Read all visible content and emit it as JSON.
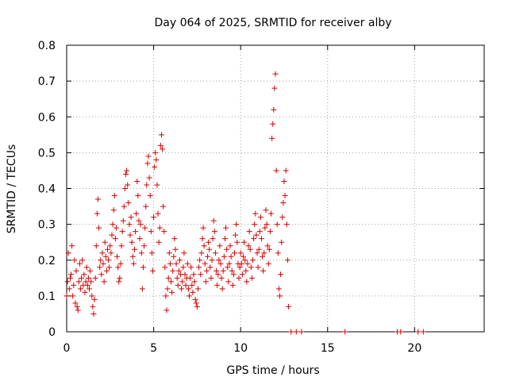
{
  "chart_data": {
    "type": "scatter",
    "title": "Day 064 of 2025, SRMTID for receiver alby",
    "xlabel": "GPS time / hours",
    "ylabel": "SRMTID / TECUs",
    "xlim": [
      0,
      24
    ],
    "ylim": [
      0,
      0.8
    ],
    "x_ticks": [
      0,
      5,
      10,
      15,
      20
    ],
    "y_ticks": [
      0,
      0.1,
      0.2,
      0.3,
      0.4,
      0.5,
      0.6,
      0.7,
      0.8
    ],
    "x_tick_labels": [
      "0",
      "5",
      "10",
      "15",
      "20"
    ],
    "y_tick_labels": [
      "0",
      "0.1",
      "0.2",
      "0.3",
      "0.4",
      "0.5",
      "0.6",
      "0.7",
      "0.8"
    ],
    "grid": true,
    "marker": "+",
    "color": "#d90000",
    "series": [
      {
        "name": "alby",
        "points": [
          [
            0.0,
            0.1
          ],
          [
            0.05,
            0.14
          ],
          [
            0.1,
            0.22
          ],
          [
            0.15,
            0.12
          ],
          [
            0.2,
            0.15
          ],
          [
            0.25,
            0.16
          ],
          [
            0.3,
            0.24
          ],
          [
            0.35,
            0.1
          ],
          [
            0.4,
            0.13
          ],
          [
            0.45,
            0.2
          ],
          [
            0.5,
            0.08
          ],
          [
            0.55,
            0.17
          ],
          [
            0.6,
            0.07
          ],
          [
            0.65,
            0.06
          ],
          [
            0.7,
            0.14
          ],
          [
            0.75,
            0.19
          ],
          [
            0.8,
            0.12
          ],
          [
            0.85,
            0.15
          ],
          [
            0.9,
            0.2
          ],
          [
            0.95,
            0.13
          ],
          [
            1.0,
            0.16
          ],
          [
            1.05,
            0.11
          ],
          [
            1.1,
            0.14
          ],
          [
            1.15,
            0.18
          ],
          [
            1.2,
            0.13
          ],
          [
            1.25,
            0.15
          ],
          [
            1.3,
            0.12
          ],
          [
            1.35,
            0.17
          ],
          [
            1.4,
            0.14
          ],
          [
            1.45,
            0.1
          ],
          [
            1.5,
            0.07
          ],
          [
            1.55,
            0.05
          ],
          [
            1.6,
            0.09
          ],
          [
            1.65,
            0.15
          ],
          [
            1.7,
            0.24
          ],
          [
            1.75,
            0.33
          ],
          [
            1.8,
            0.37
          ],
          [
            1.85,
            0.29
          ],
          [
            1.9,
            0.18
          ],
          [
            1.95,
            0.2
          ],
          [
            2.0,
            0.16
          ],
          [
            2.05,
            0.22
          ],
          [
            2.1,
            0.19
          ],
          [
            2.15,
            0.14
          ],
          [
            2.2,
            0.25
          ],
          [
            2.25,
            0.21
          ],
          [
            2.3,
            0.17
          ],
          [
            2.35,
            0.23
          ],
          [
            2.4,
            0.2
          ],
          [
            2.45,
            0.18
          ],
          [
            2.5,
            0.24
          ],
          [
            2.55,
            0.22
          ],
          [
            2.6,
            0.27
          ],
          [
            2.65,
            0.3
          ],
          [
            2.7,
            0.34
          ],
          [
            2.75,
            0.38
          ],
          [
            2.8,
            0.26
          ],
          [
            2.85,
            0.29
          ],
          [
            2.9,
            0.21
          ],
          [
            2.95,
            0.18
          ],
          [
            3.0,
            0.14
          ],
          [
            3.05,
            0.15
          ],
          [
            3.1,
            0.19
          ],
          [
            3.15,
            0.24
          ],
          [
            3.2,
            0.28
          ],
          [
            3.25,
            0.31
          ],
          [
            3.3,
            0.35
          ],
          [
            3.35,
            0.4
          ],
          [
            3.4,
            0.44
          ],
          [
            3.45,
            0.45
          ],
          [
            3.5,
            0.41
          ],
          [
            3.55,
            0.36
          ],
          [
            3.6,
            0.3
          ],
          [
            3.65,
            0.27
          ],
          [
            3.7,
            0.32
          ],
          [
            3.75,
            0.25
          ],
          [
            3.8,
            0.21
          ],
          [
            3.85,
            0.19
          ],
          [
            3.9,
            0.23
          ],
          [
            3.95,
            0.28
          ],
          [
            4.0,
            0.33
          ],
          [
            4.05,
            0.42
          ],
          [
            4.1,
            0.38
          ],
          [
            4.15,
            0.31
          ],
          [
            4.2,
            0.26
          ],
          [
            4.25,
            0.3
          ],
          [
            4.3,
            0.22
          ],
          [
            4.35,
            0.12
          ],
          [
            4.4,
            0.18
          ],
          [
            4.45,
            0.24
          ],
          [
            4.5,
            0.29
          ],
          [
            4.55,
            0.35
          ],
          [
            4.6,
            0.41
          ],
          [
            4.65,
            0.47
          ],
          [
            4.7,
            0.49
          ],
          [
            4.75,
            0.43
          ],
          [
            4.8,
            0.38
          ],
          [
            4.85,
            0.28
          ],
          [
            4.9,
            0.22
          ],
          [
            4.95,
            0.17
          ],
          [
            5.0,
            0.32
          ],
          [
            5.05,
            0.46
          ],
          [
            5.1,
            0.5
          ],
          [
            5.15,
            0.48
          ],
          [
            5.2,
            0.41
          ],
          [
            5.25,
            0.33
          ],
          [
            5.3,
            0.25
          ],
          [
            5.35,
            0.29
          ],
          [
            5.4,
            0.52
          ],
          [
            5.45,
            0.55
          ],
          [
            5.5,
            0.51
          ],
          [
            5.55,
            0.35
          ],
          [
            5.6,
            0.28
          ],
          [
            5.65,
            0.18
          ],
          [
            5.7,
            0.1
          ],
          [
            5.75,
            0.06
          ],
          [
            5.8,
            0.12
          ],
          [
            5.85,
            0.15
          ],
          [
            5.9,
            0.22
          ],
          [
            5.95,
            0.19
          ],
          [
            6.0,
            0.14
          ],
          [
            6.05,
            0.11
          ],
          [
            6.1,
            0.17
          ],
          [
            6.15,
            0.21
          ],
          [
            6.2,
            0.26
          ],
          [
            6.25,
            0.23
          ],
          [
            6.3,
            0.19
          ],
          [
            6.35,
            0.15
          ],
          [
            6.4,
            0.13
          ],
          [
            6.45,
            0.17
          ],
          [
            6.5,
            0.2
          ],
          [
            6.55,
            0.16
          ],
          [
            6.6,
            0.12
          ],
          [
            6.65,
            0.14
          ],
          [
            6.7,
            0.18
          ],
          [
            6.75,
            0.22
          ],
          [
            6.8,
            0.16
          ],
          [
            6.85,
            0.13
          ],
          [
            6.9,
            0.15
          ],
          [
            6.95,
            0.19
          ],
          [
            7.0,
            0.12
          ],
          [
            7.05,
            0.1
          ],
          [
            7.1,
            0.15
          ],
          [
            7.15,
            0.18
          ],
          [
            7.2,
            0.13
          ],
          [
            7.25,
            0.11
          ],
          [
            7.3,
            0.16
          ],
          [
            7.35,
            0.14
          ],
          [
            7.4,
            0.09
          ],
          [
            7.45,
            0.08
          ],
          [
            7.5,
            0.07
          ],
          [
            7.55,
            0.12
          ],
          [
            7.6,
            0.18
          ],
          [
            7.65,
            0.2
          ],
          [
            7.7,
            0.16
          ],
          [
            7.75,
            0.22
          ],
          [
            7.8,
            0.26
          ],
          [
            7.85,
            0.29
          ],
          [
            7.9,
            0.24
          ],
          [
            7.95,
            0.19
          ],
          [
            8.0,
            0.14
          ],
          [
            8.05,
            0.17
          ],
          [
            8.1,
            0.21
          ],
          [
            8.15,
            0.25
          ],
          [
            8.2,
            0.23
          ],
          [
            8.25,
            0.18
          ],
          [
            8.3,
            0.15
          ],
          [
            8.35,
            0.2
          ],
          [
            8.4,
            0.26
          ],
          [
            8.45,
            0.31
          ],
          [
            8.5,
            0.28
          ],
          [
            8.55,
            0.22
          ],
          [
            8.6,
            0.17
          ],
          [
            8.65,
            0.13
          ],
          [
            8.7,
            0.16
          ],
          [
            8.75,
            0.2
          ],
          [
            8.8,
            0.24
          ],
          [
            8.85,
            0.19
          ],
          [
            8.9,
            0.15
          ],
          [
            8.95,
            0.12
          ],
          [
            9.0,
            0.17
          ],
          [
            9.05,
            0.21
          ],
          [
            9.1,
            0.26
          ],
          [
            9.15,
            0.29
          ],
          [
            9.2,
            0.23
          ],
          [
            9.25,
            0.18
          ],
          [
            9.3,
            0.14
          ],
          [
            9.35,
            0.19
          ],
          [
            9.4,
            0.24
          ],
          [
            9.45,
            0.21
          ],
          [
            9.5,
            0.17
          ],
          [
            9.55,
            0.13
          ],
          [
            9.6,
            0.16
          ],
          [
            9.65,
            0.22
          ],
          [
            9.7,
            0.27
          ],
          [
            9.75,
            0.3
          ],
          [
            9.8,
            0.25
          ],
          [
            9.85,
            0.19
          ],
          [
            9.9,
            0.15
          ],
          [
            9.95,
            0.18
          ],
          [
            10.0,
            0.22
          ],
          [
            10.05,
            0.19
          ],
          [
            10.1,
            0.16
          ],
          [
            10.15,
            0.21
          ],
          [
            10.2,
            0.25
          ],
          [
            10.25,
            0.2
          ],
          [
            10.3,
            0.17
          ],
          [
            10.35,
            0.14
          ],
          [
            10.4,
            0.19
          ],
          [
            10.45,
            0.24
          ],
          [
            10.5,
            0.28
          ],
          [
            10.55,
            0.23
          ],
          [
            10.6,
            0.18
          ],
          [
            10.65,
            0.15
          ],
          [
            10.7,
            0.2
          ],
          [
            10.75,
            0.26
          ],
          [
            10.8,
            0.3
          ],
          [
            10.85,
            0.33
          ],
          [
            10.9,
            0.27
          ],
          [
            10.95,
            0.22
          ],
          [
            11.0,
            0.18
          ],
          [
            11.05,
            0.23
          ],
          [
            11.1,
            0.28
          ],
          [
            11.15,
            0.32
          ],
          [
            11.2,
            0.26
          ],
          [
            11.25,
            0.21
          ],
          [
            11.3,
            0.17
          ],
          [
            11.35,
            0.22
          ],
          [
            11.4,
            0.29
          ],
          [
            11.45,
            0.34
          ],
          [
            11.5,
            0.3
          ],
          [
            11.55,
            0.24
          ],
          [
            11.6,
            0.19
          ],
          [
            11.65,
            0.23
          ],
          [
            11.7,
            0.28
          ],
          [
            11.75,
            0.33
          ],
          [
            11.8,
            0.54
          ],
          [
            11.85,
            0.58
          ],
          [
            11.9,
            0.62
          ],
          [
            11.95,
            0.68
          ],
          [
            12.0,
            0.72
          ],
          [
            12.05,
            0.45
          ],
          [
            12.1,
            0.3
          ],
          [
            12.15,
            0.22
          ],
          [
            12.2,
            0.12
          ],
          [
            12.25,
            0.1
          ],
          [
            12.3,
            0.16
          ],
          [
            12.35,
            0.25
          ],
          [
            12.4,
            0.32
          ],
          [
            12.45,
            0.36
          ],
          [
            12.5,
            0.42
          ],
          [
            12.55,
            0.38
          ],
          [
            12.6,
            0.45
          ],
          [
            12.65,
            0.3
          ],
          [
            12.7,
            0.2
          ],
          [
            12.75,
            0.07
          ],
          [
            12.9,
            0.0
          ],
          [
            13.2,
            0.0
          ],
          [
            13.5,
            0.0
          ],
          [
            16.0,
            0.0
          ],
          [
            19.0,
            0.0
          ],
          [
            19.2,
            0.0
          ],
          [
            20.2,
            0.0
          ],
          [
            20.5,
            0.0
          ]
        ]
      }
    ]
  }
}
